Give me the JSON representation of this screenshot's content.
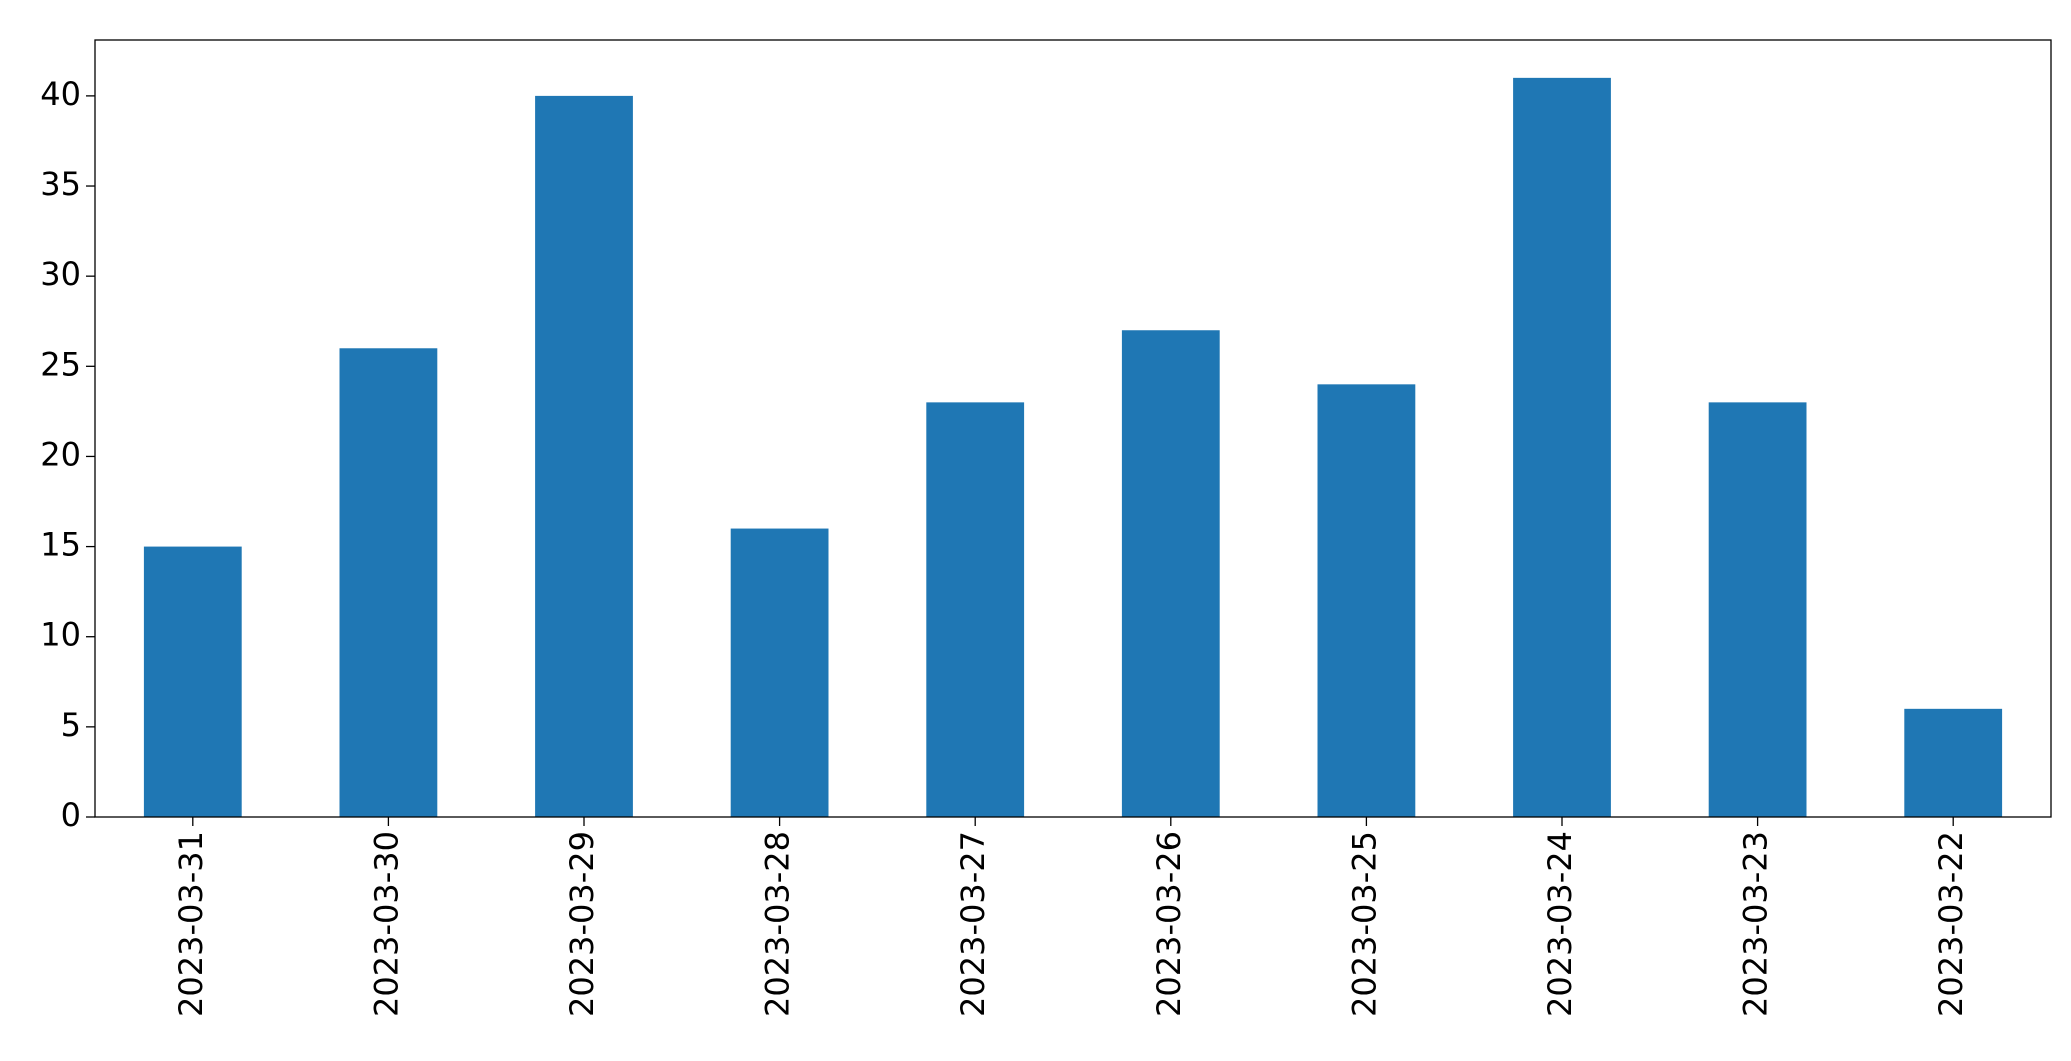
{
  "chart_data": {
    "type": "bar",
    "categories": [
      "2023-03-31",
      "2023-03-30",
      "2023-03-29",
      "2023-03-28",
      "2023-03-27",
      "2023-03-26",
      "2023-03-25",
      "2023-03-24",
      "2023-03-23",
      "2023-03-22"
    ],
    "values": [
      15,
      26,
      40,
      16,
      23,
      27,
      24,
      41,
      23,
      6
    ],
    "color": "#1f77b4",
    "ylim": [
      0,
      43.1
    ],
    "yticks": [
      0,
      5,
      10,
      15,
      20,
      25,
      30,
      35,
      40
    ],
    "grid": false
  }
}
